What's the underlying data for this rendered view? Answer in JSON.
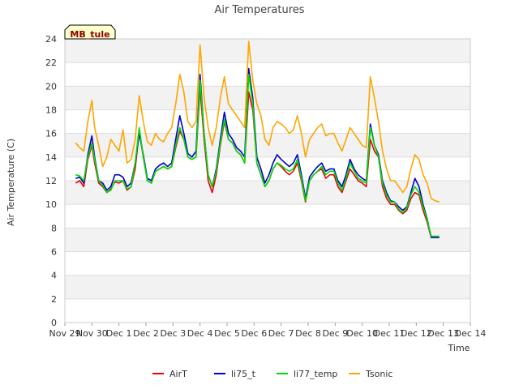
{
  "chart_data": {
    "type": "line",
    "title": "Air Temperatures",
    "xlabel": "Time",
    "ylabel": "Air Temperature (C)",
    "site_label": "MB_tule",
    "ylim": [
      0,
      24
    ],
    "xlim": [
      0,
      15
    ],
    "yticks": [
      0,
      2,
      4,
      6,
      8,
      10,
      12,
      14,
      16,
      18,
      20,
      22,
      24
    ],
    "y_tick_labels": [
      "0",
      "2",
      "4",
      "6",
      "8",
      "10",
      "12",
      "14",
      "16",
      "18",
      "20",
      "22",
      "24"
    ],
    "x_tick_labels": [
      "Nov 29",
      "Nov 30",
      "Dec 1",
      "Dec 2",
      "Dec 3",
      "Dec 4",
      "Dec 5",
      "Dec 6",
      "Dec 7",
      "Dec 8",
      "Dec 9",
      "Dec 10",
      "Dec 11",
      "Dec 12",
      "Dec 13",
      "Dec 14"
    ],
    "x_unit_note": "x values are days since Nov 29 00:00",
    "grid": true,
    "legend_position": "bottom-center",
    "series": [
      {
        "name": "AirT",
        "color": "#e8000b",
        "x": [
          0.4,
          0.55,
          0.7,
          0.85,
          1.0,
          1.1,
          1.25,
          1.4,
          1.55,
          1.7,
          1.85,
          2.0,
          2.15,
          2.3,
          2.45,
          2.6,
          2.75,
          2.9,
          3.05,
          3.2,
          3.35,
          3.5,
          3.65,
          3.8,
          3.95,
          4.1,
          4.25,
          4.4,
          4.55,
          4.7,
          4.85,
          5.0,
          5.15,
          5.3,
          5.45,
          5.6,
          5.75,
          5.9,
          6.05,
          6.2,
          6.35,
          6.5,
          6.65,
          6.8,
          6.95,
          7.1,
          7.25,
          7.4,
          7.55,
          7.7,
          7.85,
          8.0,
          8.15,
          8.3,
          8.45,
          8.6,
          8.75,
          8.9,
          9.05,
          9.2,
          9.35,
          9.5,
          9.65,
          9.8,
          9.95,
          10.1,
          10.25,
          10.4,
          10.55,
          10.7,
          10.85,
          11.0,
          11.15,
          11.3,
          11.45,
          11.6,
          11.75,
          11.9,
          12.05,
          12.2,
          12.35,
          12.5,
          12.65,
          12.8,
          12.95,
          13.1,
          13.25,
          13.4,
          13.55,
          13.7,
          13.85
        ],
        "values": [
          11.8,
          12.0,
          11.5,
          13.8,
          15.0,
          13.5,
          11.8,
          11.5,
          11.0,
          11.3,
          11.9,
          11.8,
          12.0,
          11.2,
          11.5,
          13.0,
          16.2,
          14.0,
          12.0,
          11.8,
          12.8,
          13.0,
          13.2,
          13.0,
          13.2,
          14.8,
          16.2,
          15.5,
          14.0,
          13.8,
          14.0,
          19.8,
          15.5,
          12.0,
          11.0,
          12.5,
          15.0,
          17.0,
          15.5,
          15.2,
          14.5,
          14.2,
          13.5,
          19.5,
          18.0,
          13.5,
          12.5,
          11.5,
          12.0,
          13.0,
          13.5,
          13.2,
          12.8,
          12.5,
          12.8,
          13.5,
          12.0,
          10.2,
          12.0,
          12.5,
          12.8,
          13.0,
          12.2,
          12.5,
          12.5,
          11.5,
          11.0,
          12.0,
          13.0,
          12.5,
          12.0,
          11.8,
          11.5,
          15.5,
          14.5,
          14.0,
          11.5,
          10.5,
          10.0,
          10.0,
          9.5,
          9.2,
          9.5,
          10.5,
          11.0,
          10.8,
          9.5,
          8.5,
          7.2,
          7.2,
          7.2
        ]
      },
      {
        "name": "li75_t",
        "color": "#0000cc",
        "x": [
          0.4,
          0.55,
          0.7,
          0.85,
          1.0,
          1.1,
          1.25,
          1.4,
          1.55,
          1.7,
          1.85,
          2.0,
          2.15,
          2.3,
          2.45,
          2.6,
          2.75,
          2.9,
          3.05,
          3.2,
          3.35,
          3.5,
          3.65,
          3.8,
          3.95,
          4.1,
          4.25,
          4.4,
          4.55,
          4.7,
          4.85,
          5.0,
          5.15,
          5.3,
          5.45,
          5.6,
          5.75,
          5.9,
          6.05,
          6.2,
          6.35,
          6.5,
          6.65,
          6.8,
          6.95,
          7.1,
          7.25,
          7.4,
          7.55,
          7.7,
          7.85,
          8.0,
          8.15,
          8.3,
          8.45,
          8.6,
          8.75,
          8.9,
          9.05,
          9.2,
          9.35,
          9.5,
          9.65,
          9.8,
          9.95,
          10.1,
          10.25,
          10.4,
          10.55,
          10.7,
          10.85,
          11.0,
          11.15,
          11.3,
          11.45,
          11.6,
          11.75,
          11.9,
          12.05,
          12.2,
          12.35,
          12.5,
          12.65,
          12.8,
          12.95,
          13.1,
          13.25,
          13.4,
          13.55,
          13.7,
          13.85
        ],
        "values": [
          12.2,
          12.3,
          11.8,
          14.2,
          15.8,
          14.0,
          12.0,
          11.8,
          11.2,
          11.5,
          12.5,
          12.5,
          12.3,
          11.5,
          11.8,
          13.5,
          16.0,
          14.2,
          12.2,
          12.0,
          13.0,
          13.3,
          13.5,
          13.2,
          13.5,
          15.5,
          17.5,
          16.0,
          14.3,
          14.0,
          14.5,
          21.0,
          16.0,
          12.5,
          11.5,
          13.0,
          15.5,
          17.8,
          16.0,
          15.5,
          14.8,
          14.5,
          14.0,
          21.5,
          19.0,
          14.0,
          13.0,
          11.8,
          12.5,
          13.5,
          14.2,
          13.8,
          13.5,
          13.2,
          13.5,
          14.2,
          12.5,
          10.5,
          12.3,
          12.8,
          13.2,
          13.5,
          12.8,
          13.0,
          13.0,
          12.0,
          11.5,
          12.5,
          13.8,
          13.0,
          12.5,
          12.2,
          12.0,
          16.8,
          15.0,
          14.2,
          12.0,
          11.0,
          10.3,
          10.2,
          9.8,
          9.5,
          9.8,
          11.0,
          12.2,
          11.5,
          10.0,
          8.8,
          7.2,
          7.2,
          7.2
        ]
      },
      {
        "name": "li77_temp",
        "color": "#00dd00",
        "x": [
          0.4,
          0.55,
          0.7,
          0.85,
          1.0,
          1.1,
          1.25,
          1.4,
          1.55,
          1.7,
          1.85,
          2.0,
          2.15,
          2.3,
          2.45,
          2.6,
          2.75,
          2.9,
          3.05,
          3.2,
          3.35,
          3.5,
          3.65,
          3.8,
          3.95,
          4.1,
          4.25,
          4.4,
          4.55,
          4.7,
          4.85,
          5.0,
          5.15,
          5.3,
          5.45,
          5.6,
          5.75,
          5.9,
          6.05,
          6.2,
          6.35,
          6.5,
          6.65,
          6.8,
          6.95,
          7.1,
          7.25,
          7.4,
          7.55,
          7.7,
          7.85,
          8.0,
          8.15,
          8.3,
          8.45,
          8.6,
          8.75,
          8.9,
          9.05,
          9.2,
          9.35,
          9.5,
          9.65,
          9.8,
          9.95,
          10.1,
          10.25,
          10.4,
          10.55,
          10.7,
          10.85,
          11.0,
          11.15,
          11.3,
          11.45,
          11.6,
          11.75,
          11.9,
          12.05,
          12.2,
          12.35,
          12.5,
          12.65,
          12.8,
          12.95,
          13.1,
          13.25,
          13.4,
          13.55,
          13.7,
          13.85
        ],
        "values": [
          12.5,
          12.4,
          12.0,
          14.0,
          15.2,
          13.8,
          12.0,
          11.6,
          11.0,
          11.2,
          12.0,
          12.0,
          12.0,
          11.3,
          11.5,
          13.5,
          16.5,
          14.0,
          12.0,
          11.8,
          12.8,
          13.0,
          13.2,
          13.0,
          13.2,
          15.0,
          16.5,
          15.5,
          14.0,
          13.8,
          14.0,
          20.5,
          16.0,
          12.5,
          11.5,
          12.8,
          15.2,
          17.2,
          15.5,
          15.2,
          14.5,
          14.2,
          13.5,
          21.0,
          18.5,
          13.5,
          12.5,
          11.5,
          12.0,
          13.0,
          13.5,
          13.3,
          13.0,
          12.8,
          13.0,
          13.8,
          12.2,
          10.3,
          12.0,
          12.5,
          12.8,
          13.2,
          12.5,
          12.8,
          12.8,
          11.8,
          11.2,
          12.2,
          13.5,
          12.8,
          12.2,
          12.0,
          11.8,
          16.5,
          15.0,
          14.0,
          11.8,
          10.8,
          10.2,
          10.2,
          9.6,
          9.3,
          9.7,
          10.8,
          11.5,
          11.0,
          9.8,
          8.7,
          7.3,
          7.3,
          7.3
        ]
      },
      {
        "name": "Tsonic",
        "color": "#ffa500",
        "x": [
          0.4,
          0.55,
          0.7,
          0.85,
          1.0,
          1.1,
          1.25,
          1.4,
          1.55,
          1.7,
          1.85,
          2.0,
          2.15,
          2.3,
          2.45,
          2.6,
          2.75,
          2.9,
          3.05,
          3.2,
          3.35,
          3.5,
          3.65,
          3.8,
          3.95,
          4.1,
          4.25,
          4.4,
          4.55,
          4.7,
          4.85,
          5.0,
          5.15,
          5.3,
          5.45,
          5.6,
          5.75,
          5.9,
          6.05,
          6.2,
          6.35,
          6.5,
          6.65,
          6.8,
          6.95,
          7.1,
          7.25,
          7.4,
          7.55,
          7.7,
          7.85,
          8.0,
          8.15,
          8.3,
          8.45,
          8.6,
          8.75,
          8.9,
          9.05,
          9.2,
          9.35,
          9.5,
          9.65,
          9.8,
          9.95,
          10.1,
          10.25,
          10.4,
          10.55,
          10.7,
          10.85,
          11.0,
          11.15,
          11.3,
          11.45,
          11.6,
          11.75,
          11.9,
          12.05,
          12.2,
          12.35,
          12.5,
          12.65,
          12.8,
          12.95,
          13.1,
          13.25,
          13.4,
          13.55,
          13.7,
          13.85
        ],
        "values": [
          15.2,
          14.8,
          14.5,
          17.0,
          18.8,
          16.5,
          15.0,
          13.2,
          14.0,
          15.5,
          15.0,
          14.5,
          16.3,
          13.5,
          13.8,
          15.5,
          19.2,
          17.0,
          15.3,
          15.0,
          16.0,
          15.5,
          15.3,
          16.0,
          16.5,
          18.5,
          21.0,
          19.5,
          17.0,
          16.5,
          17.0,
          23.5,
          19.0,
          16.5,
          15.0,
          16.5,
          19.0,
          20.8,
          18.5,
          18.0,
          17.5,
          17.0,
          16.5,
          23.8,
          20.5,
          18.5,
          17.5,
          15.5,
          15.0,
          16.5,
          17.0,
          16.8,
          16.5,
          16.0,
          16.3,
          17.5,
          16.0,
          14.0,
          15.5,
          16.0,
          16.5,
          16.8,
          15.8,
          16.0,
          16.0,
          15.2,
          14.5,
          15.5,
          16.5,
          16.0,
          15.5,
          15.0,
          14.8,
          20.8,
          19.0,
          17.0,
          14.5,
          13.0,
          12.0,
          12.0,
          11.5,
          11.0,
          11.5,
          13.0,
          14.2,
          13.8,
          12.5,
          11.8,
          10.5,
          10.3,
          10.2
        ]
      }
    ]
  }
}
